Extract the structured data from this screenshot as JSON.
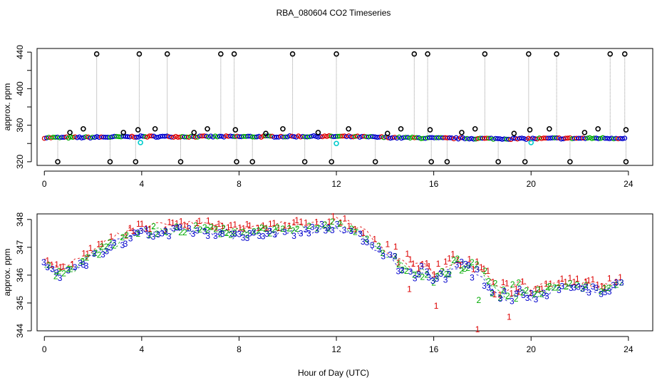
{
  "title": "RBA_080604  CO2 Timeseries",
  "chart_data": [
    {
      "type": "scatter",
      "ylabel": "approx. ppm",
      "xlabel": "",
      "xlim": [
        -0.3,
        25
      ],
      "ylim": [
        316,
        444
      ],
      "xticks": [
        0,
        4,
        8,
        12,
        16,
        20,
        24
      ],
      "yticks": [
        320,
        360,
        400,
        440
      ],
      "yminor": [
        340,
        380,
        420
      ],
      "spikes_high_x": [
        2.15,
        3.9,
        5.05,
        7.25,
        7.8,
        10.2,
        12.0,
        15.2,
        15.75,
        18.1,
        19.9,
        21.05,
        23.25,
        23.85
      ],
      "spikes_low_x": [
        0.55,
        2.7,
        3.75,
        5.6,
        7.9,
        8.55,
        10.7,
        11.8,
        13.6,
        15.9,
        16.55,
        18.65,
        19.75,
        21.6,
        23.9
      ],
      "outliers_black": [
        {
          "x": 1.05,
          "y": 352
        },
        {
          "x": 1.6,
          "y": 356
        },
        {
          "x": 3.25,
          "y": 352
        },
        {
          "x": 3.85,
          "y": 355
        },
        {
          "x": 4.55,
          "y": 356
        },
        {
          "x": 6.15,
          "y": 352
        },
        {
          "x": 6.7,
          "y": 356
        },
        {
          "x": 7.85,
          "y": 355
        },
        {
          "x": 9.1,
          "y": 351
        },
        {
          "x": 9.8,
          "y": 356
        },
        {
          "x": 11.25,
          "y": 352
        },
        {
          "x": 12.5,
          "y": 356
        },
        {
          "x": 14.1,
          "y": 351
        },
        {
          "x": 14.65,
          "y": 356
        },
        {
          "x": 15.85,
          "y": 355
        },
        {
          "x": 17.15,
          "y": 352
        },
        {
          "x": 17.7,
          "y": 356
        },
        {
          "x": 19.3,
          "y": 351
        },
        {
          "x": 19.95,
          "y": 355
        },
        {
          "x": 20.75,
          "y": 356
        },
        {
          "x": 22.2,
          "y": 352
        },
        {
          "x": 22.75,
          "y": 356
        },
        {
          "x": 23.9,
          "y": 355
        }
      ],
      "cyan_points": [
        {
          "x": 3.95,
          "y": 341
        },
        {
          "x": 12.0,
          "y": 340
        },
        {
          "x": 20.0,
          "y": 341
        }
      ],
      "baseline": [
        [
          0,
          346.4
        ],
        [
          1.5,
          346.6
        ],
        [
          4,
          347.6
        ],
        [
          8,
          347.5
        ],
        [
          11.5,
          347.8
        ],
        [
          12.5,
          347.6
        ],
        [
          14.5,
          346.4
        ],
        [
          16,
          345.9
        ],
        [
          18,
          345.4
        ],
        [
          19.5,
          345.1
        ],
        [
          21,
          345.6
        ],
        [
          23.5,
          345.8
        ],
        [
          23.9,
          345.9
        ]
      ],
      "colors": {
        "black": "#000000",
        "blue": "#0000cc",
        "green": "#00aa00",
        "red": "#dd0000",
        "cyan": "#00cccc",
        "gray": "#999999"
      }
    },
    {
      "type": "scatter",
      "ylabel": "approx. ppm",
      "xlabel": "Hour of Day (UTC)",
      "xlim": [
        -0.3,
        25
      ],
      "ylim": [
        344,
        348.2
      ],
      "xticks": [
        0,
        4,
        8,
        12,
        16,
        20,
        24
      ],
      "yticks": [
        344,
        345,
        346,
        347,
        348
      ],
      "series": [
        {
          "name": "1",
          "color": "#dd0000"
        },
        {
          "name": "2",
          "color": "#00aa00"
        },
        {
          "name": "3",
          "color": "#0000cc"
        }
      ],
      "trend": [
        [
          0,
          346.4
        ],
        [
          0.5,
          346.1
        ],
        [
          1,
          346.2
        ],
        [
          1.5,
          346.4
        ],
        [
          2,
          346.7
        ],
        [
          3,
          347.2
        ],
        [
          3.5,
          347.4
        ],
        [
          4,
          347.6
        ],
        [
          5,
          347.6
        ],
        [
          6,
          347.7
        ],
        [
          7,
          347.6
        ],
        [
          8,
          347.5
        ],
        [
          9,
          347.6
        ],
        [
          10,
          347.6
        ],
        [
          11,
          347.7
        ],
        [
          11.5,
          347.8
        ],
        [
          12,
          347.8
        ],
        [
          13,
          347.5
        ],
        [
          13.5,
          347.1
        ],
        [
          14,
          346.8
        ],
        [
          14.5,
          346.5
        ],
        [
          15,
          346.3
        ],
        [
          15.5,
          346.2
        ],
        [
          16,
          346.0
        ],
        [
          16.5,
          346.1
        ],
        [
          17,
          346.4
        ],
        [
          17.5,
          346.3
        ],
        [
          18,
          346.0
        ],
        [
          18.5,
          345.5
        ],
        [
          19,
          345.3
        ],
        [
          19.5,
          345.5
        ],
        [
          20,
          345.3
        ],
        [
          20.5,
          345.4
        ],
        [
          21,
          345.6
        ],
        [
          22,
          345.6
        ],
        [
          23,
          345.5
        ],
        [
          23.5,
          345.7
        ],
        [
          23.9,
          345.9
        ]
      ],
      "dips": [
        {
          "x": 17.8,
          "y": 344.05,
          "series": "1"
        },
        {
          "x": 16.1,
          "y": 344.9,
          "series": "1"
        },
        {
          "x": 19.1,
          "y": 344.5,
          "series": "1"
        },
        {
          "x": 17.85,
          "y": 345.1,
          "series": "2"
        },
        {
          "x": 15.0,
          "y": 345.5,
          "series": "1"
        },
        {
          "x": 18.5,
          "y": 345.3,
          "series": "1"
        }
      ]
    }
  ]
}
